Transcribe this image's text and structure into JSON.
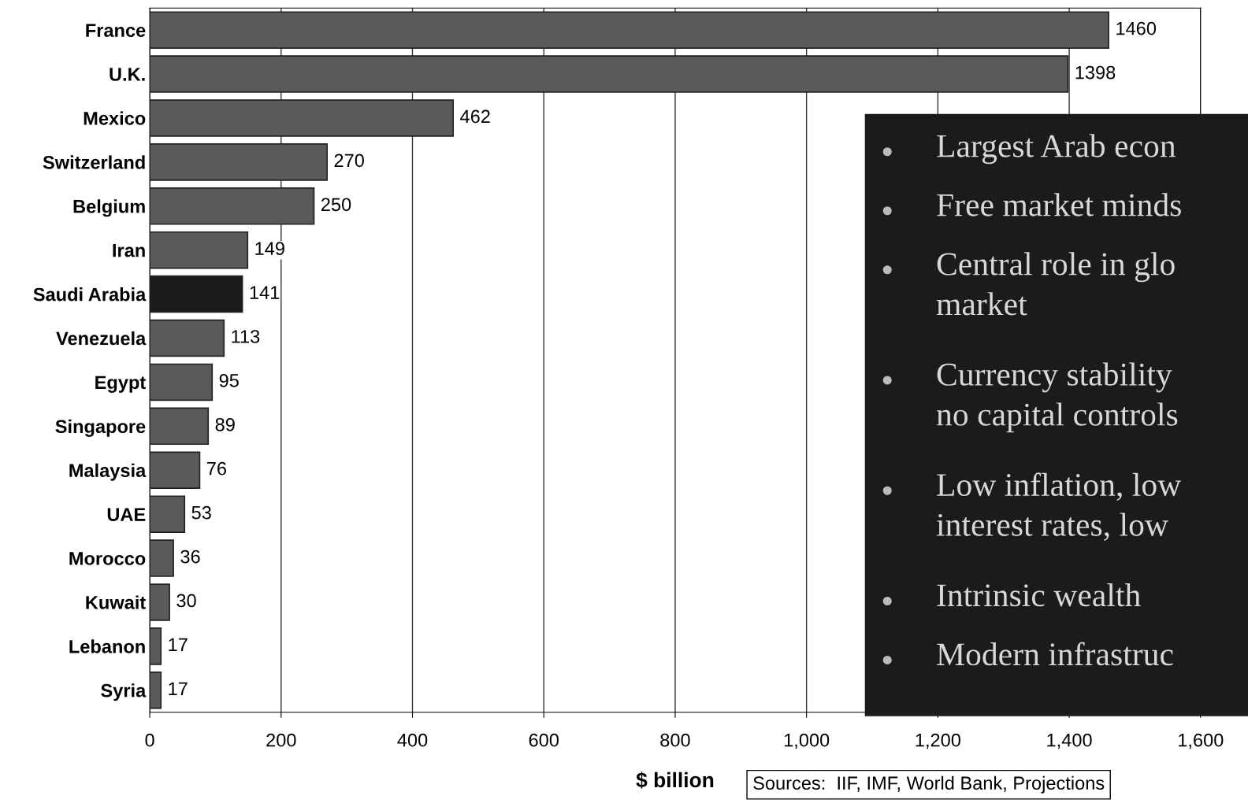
{
  "chart_data": {
    "type": "bar",
    "orientation": "horizontal",
    "xlabel": "$ billion",
    "categories": [
      "France",
      "U.K.",
      "Mexico",
      "Switzerland",
      "Belgium",
      "Iran",
      "Saudi Arabia",
      "Venezuela",
      "Egypt",
      "Singapore",
      "Malaysia",
      "UAE",
      "Morocco",
      "Kuwait",
      "Lebanon",
      "Syria"
    ],
    "values": [
      1460,
      1398,
      462,
      270,
      250,
      149,
      141,
      113,
      95,
      89,
      76,
      53,
      36,
      30,
      17,
      17
    ],
    "colors": [
      "#5a5a5a",
      "#5a5a5a",
      "#5a5a5a",
      "#5a5a5a",
      "#5a5a5a",
      "#5a5a5a",
      "#1a1a1a",
      "#5a5a5a",
      "#5a5a5a",
      "#5a5a5a",
      "#5a5a5a",
      "#5a5a5a",
      "#5a5a5a",
      "#5a5a5a",
      "#5a5a5a",
      "#5a5a5a"
    ],
    "data_labels": true,
    "xlim": [
      0,
      1600
    ],
    "xticks": [
      0,
      200,
      400,
      600,
      800,
      {
        "value": 1000,
        "label": "1,000"
      },
      {
        "value": 1200,
        "label": "1,200"
      },
      {
        "value": 1400,
        "label": "1,400"
      },
      {
        "value": 1600,
        "label": "1,600"
      }
    ],
    "grid": "x",
    "annotations": [
      "Largest Arab econ",
      "Free market minds",
      "Central role in glo\nmarket",
      "Currency stability\nno capital controls",
      "Low inflation, low\ninterest rates, low",
      "Intrinsic wealth",
      "Modern infrastruc",
      "Sources:  IIF, IMF, World Bank, Projections"
    ]
  }
}
